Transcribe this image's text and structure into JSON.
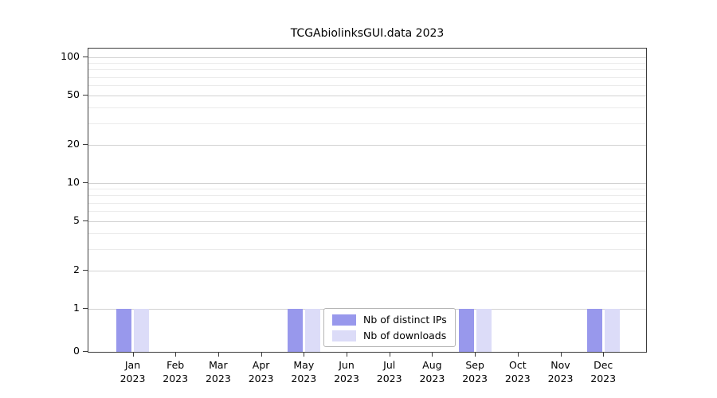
{
  "chart_data": {
    "type": "bar",
    "title": "TCGAbiolinksGUI.data 2023",
    "categories": [
      {
        "month": "Jan",
        "year": "2023"
      },
      {
        "month": "Feb",
        "year": "2023"
      },
      {
        "month": "Mar",
        "year": "2023"
      },
      {
        "month": "Apr",
        "year": "2023"
      },
      {
        "month": "May",
        "year": "2023"
      },
      {
        "month": "Jun",
        "year": "2023"
      },
      {
        "month": "Jul",
        "year": "2023"
      },
      {
        "month": "Aug",
        "year": "2023"
      },
      {
        "month": "Sep",
        "year": "2023"
      },
      {
        "month": "Oct",
        "year": "2023"
      },
      {
        "month": "Nov",
        "year": "2023"
      },
      {
        "month": "Dec",
        "year": "2023"
      }
    ],
    "series": [
      {
        "name": "Nb of distinct IPs",
        "color": "#9898ec",
        "values": [
          1,
          0,
          0,
          0,
          1,
          0,
          0,
          0,
          1,
          0,
          0,
          1
        ]
      },
      {
        "name": "Nb of downloads",
        "color": "#dcdcf8",
        "values": [
          1,
          0,
          0,
          0,
          1,
          0,
          0,
          0,
          1,
          0,
          0,
          1
        ]
      }
    ],
    "yticks": [
      0,
      1,
      2,
      5,
      10,
      20,
      50,
      100
    ],
    "ylim": [
      0,
      100
    ],
    "yscale": "log",
    "grid": "horizontal",
    "legend_position": "lower center"
  }
}
